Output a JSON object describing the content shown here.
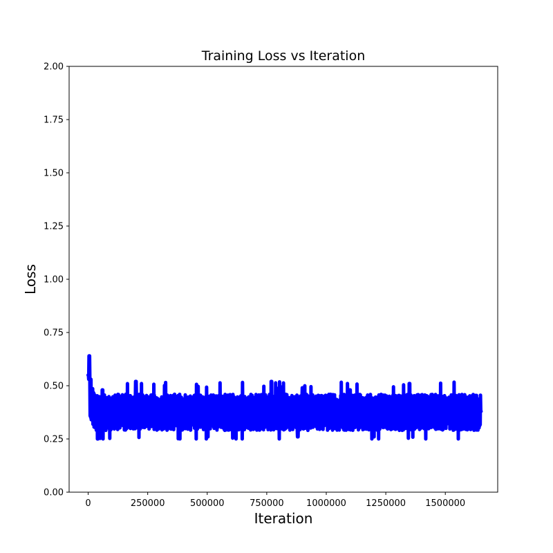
{
  "chart_data": {
    "type": "line",
    "title": "Training Loss vs Iteration",
    "xlabel": "Iteration",
    "ylabel": "Loss",
    "xlim": [
      -80000,
      1720000
    ],
    "ylim": [
      0,
      2
    ],
    "xticks": [
      0,
      250000,
      500000,
      750000,
      1000000,
      1250000,
      1500000
    ],
    "xtick_labels": [
      "0",
      "250000",
      "500000",
      "750000",
      "1000000",
      "1250000",
      "1500000"
    ],
    "yticks": [
      0,
      0.25,
      0.5,
      0.75,
      1.0,
      1.25,
      1.5,
      1.75,
      2.0
    ],
    "ytick_labels": [
      "0.00",
      "0.25",
      "0.50",
      "0.75",
      "1.00",
      "1.25",
      "1.50",
      "1.75",
      "2.00"
    ],
    "grid": false,
    "series": [
      {
        "color": "#0000ff",
        "x_start": 0,
        "x_end": 1650000,
        "initial_peak": 0.64,
        "band_min_typical": 0.29,
        "band_max_typical": 0.46,
        "spike_high_max": 0.53,
        "spike_low_min": 0.25,
        "x": [
          0,
          5000,
          15000,
          30000,
          40000,
          60000,
          100000,
          150000,
          200000,
          250000,
          300000,
          350000,
          400000,
          450000,
          500000,
          550000,
          600000,
          650000,
          700000,
          750000,
          770000,
          800000,
          850000,
          880000,
          900000,
          950000,
          1000000,
          1050000,
          1100000,
          1150000,
          1200000,
          1250000,
          1300000,
          1350000,
          1400000,
          1450000,
          1500000,
          1550000,
          1600000,
          1650000
        ],
        "y": [
          0.55,
          0.64,
          0.42,
          0.36,
          0.25,
          0.48,
          0.37,
          0.42,
          0.52,
          0.36,
          0.4,
          0.34,
          0.38,
          0.35,
          0.39,
          0.36,
          0.44,
          0.37,
          0.4,
          0.36,
          0.52,
          0.37,
          0.34,
          0.26,
          0.49,
          0.37,
          0.43,
          0.36,
          0.48,
          0.34,
          0.26,
          0.38,
          0.41,
          0.51,
          0.37,
          0.35,
          0.4,
          0.37,
          0.36,
          0.38
        ]
      }
    ]
  }
}
